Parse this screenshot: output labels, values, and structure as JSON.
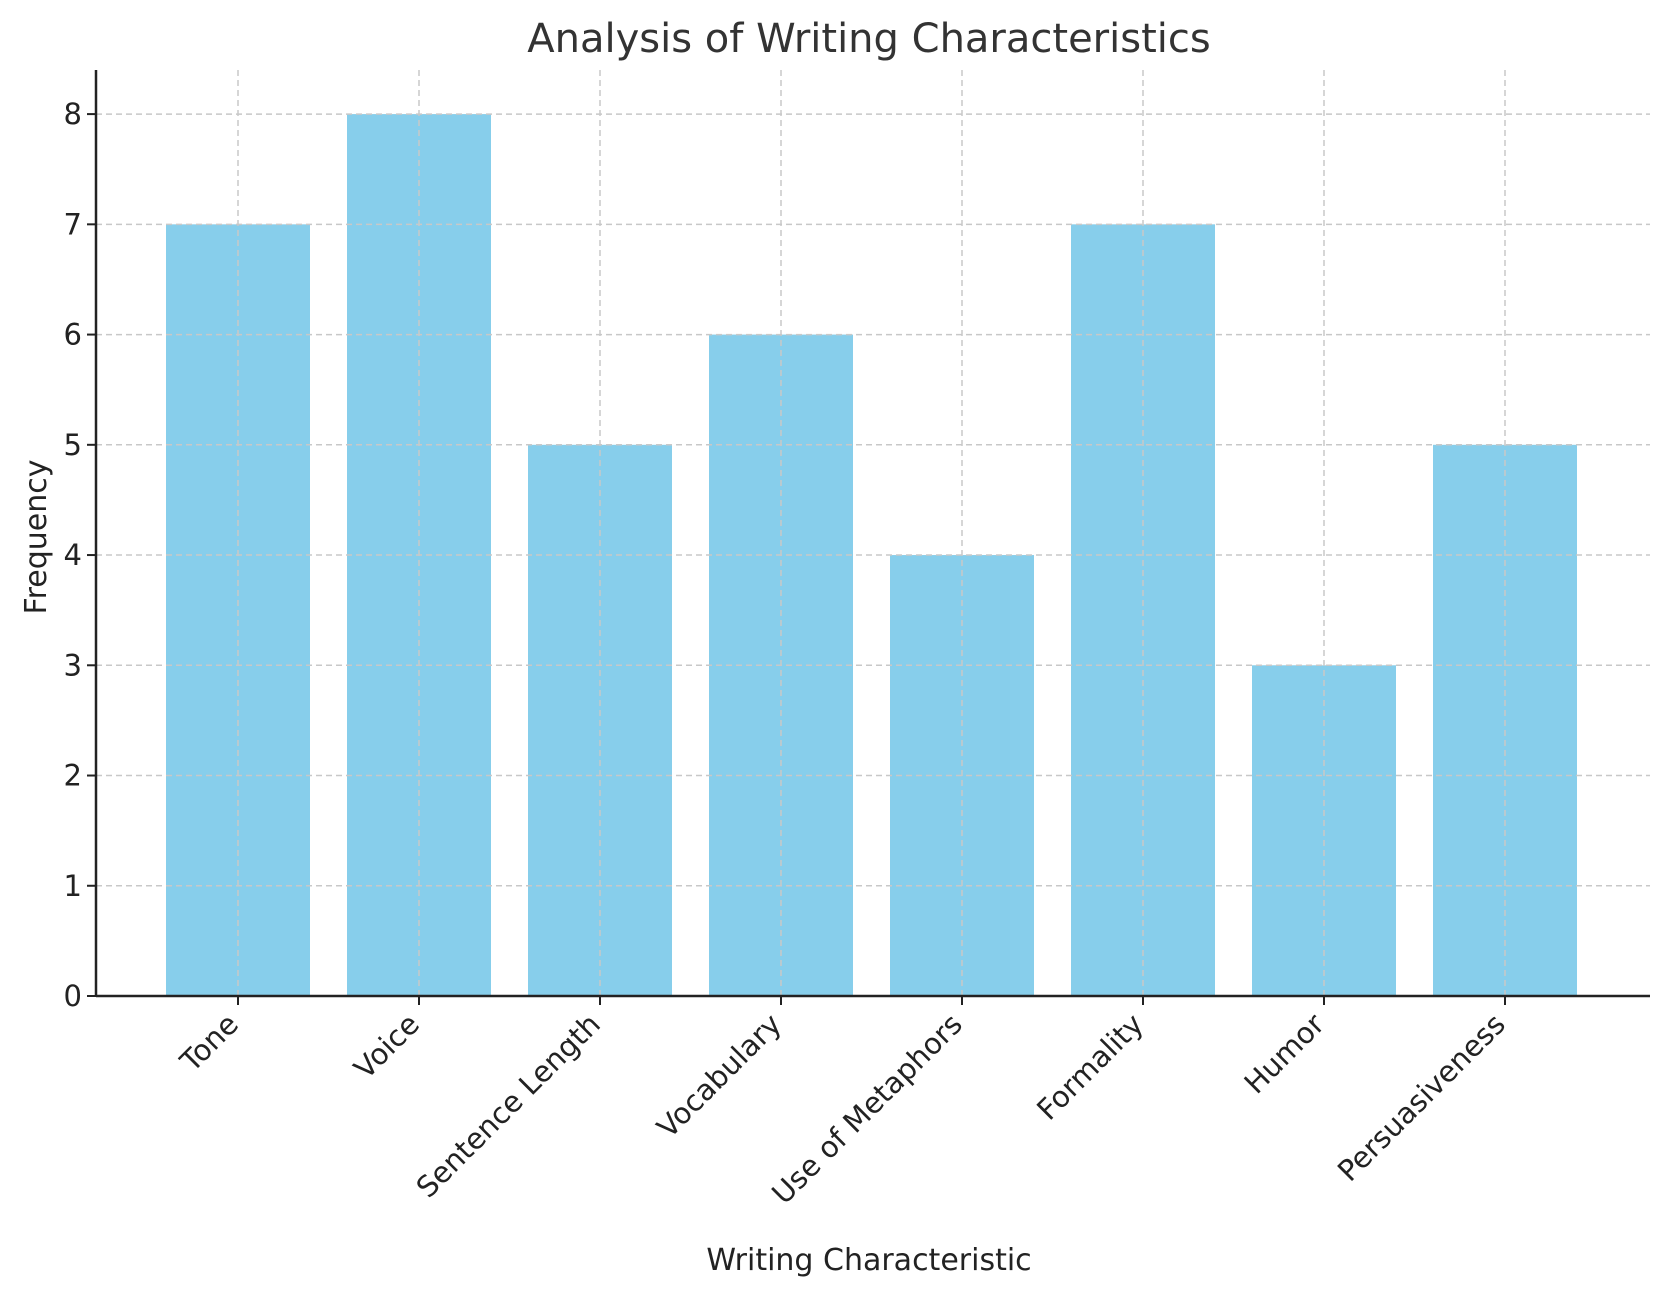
{
  "chart_data": {
    "type": "bar",
    "title": "Analysis of Writing Characteristics",
    "xlabel": "Writing Characteristic",
    "ylabel": "Frequency",
    "categories": [
      "Tone",
      "Voice",
      "Sentence Length",
      "Vocabulary",
      "Use of Metaphors",
      "Formality",
      "Humor",
      "Persuasiveness"
    ],
    "values": [
      7,
      8,
      5,
      6,
      4,
      7,
      3,
      5
    ],
    "ylim": [
      0,
      8.4
    ],
    "yticks": [
      0,
      1,
      2,
      3,
      4,
      5,
      6,
      7,
      8
    ],
    "grid": true,
    "bar_color": "#87ceeb",
    "x_tick_rotation_deg": 45
  }
}
